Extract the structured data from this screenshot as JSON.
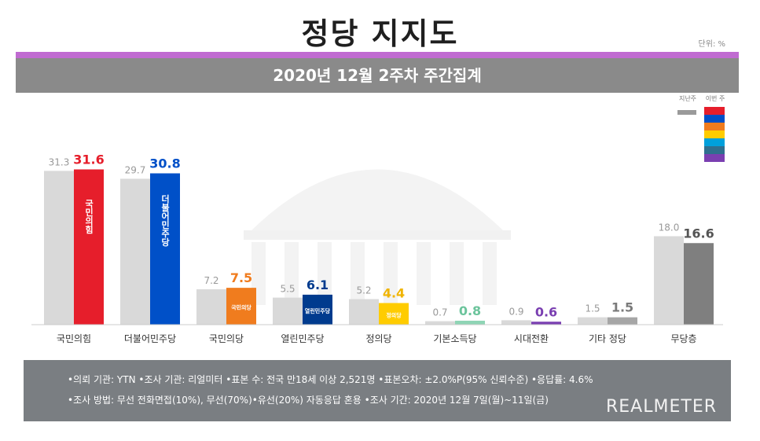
{
  "title": "정당 지지도",
  "unit_label": "단위: %",
  "subtitle": "2020년 12월 2주차 주간집계",
  "legend": {
    "prev": "지난주",
    "curr": "이번 주"
  },
  "chart_data": {
    "type": "bar",
    "title": "정당 지지도",
    "subtitle": "2020년 12월 2주차 주간집계",
    "categories": [
      "국민의힘",
      "더불어민주당",
      "국민의당",
      "열린민주당",
      "정의당",
      "기본소득당",
      "시대전환",
      "기타 정당",
      "무당층"
    ],
    "series": [
      {
        "name": "지난주",
        "values": [
          31.3,
          29.7,
          7.2,
          5.5,
          5.2,
          0.7,
          0.9,
          1.5,
          18.0
        ]
      },
      {
        "name": "이번 주",
        "values": [
          31.6,
          30.8,
          7.5,
          6.1,
          4.4,
          0.8,
          0.6,
          1.5,
          16.6
        ]
      }
    ],
    "curr_labels": [
      "31.6",
      "30.8",
      "7.5",
      "6.1",
      "4.4",
      "0.8",
      "0.6",
      "1.5",
      "16.6"
    ],
    "prev_labels": [
      "31.3",
      "29.7",
      "7.2",
      "5.5",
      "5.2",
      "0.7",
      "0.9",
      "1.5",
      "18.0"
    ],
    "bar_labels": [
      "국민의힘",
      "더불어민주당",
      "국민의당",
      "열린민주당",
      "정의당",
      "",
      "",
      "",
      ""
    ],
    "colors": {
      "prev": "#d9d9d9",
      "curr": [
        "#e61e2b",
        "#0050c8",
        "#f07c1e",
        "#003b8e",
        "#ffcc00",
        "#8fd5b5",
        "#7a3fb1",
        "#a6a6a6",
        "#7f7f7f"
      ],
      "curr_label": [
        "#e61e2b",
        "#0050c8",
        "#f07c1e",
        "#003b8e",
        "#f0b400",
        "#6cc49c",
        "#7a3fb1",
        "#7a7a7a",
        "#555555"
      ]
    },
    "ylim": [
      0,
      40
    ],
    "legend_position": "top-right",
    "grid": false
  },
  "footer": {
    "line1": "•의뢰 기관: YTN •조사 기관: 리얼미터 •표본 수: 전국 만18세 이상 2,521명 •표본오차: ±2.0%P(95% 신뢰수준) •응답률: 4.6%",
    "line2": "•조사 방법: 무선 전화면접(10%), 무선(70%)•유선(20%) 자동응답 혼용 •조사 기간: 2020년 12월 7일(월)~11일(금)",
    "brand": "REALMETER"
  }
}
